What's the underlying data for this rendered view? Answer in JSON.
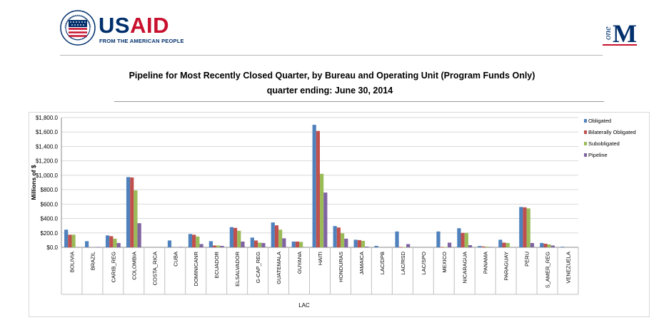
{
  "header": {
    "usaid_logo_text": "USAID",
    "usaid_logo_us": "US",
    "usaid_logo_aid": "AID",
    "usaid_tagline": "FROM THE AMERICAN PEOPLE",
    "onem_logo_text": "oneM",
    "onem_logo_one": "one",
    "onem_logo_m": "M"
  },
  "colors": {
    "obligated": "#4f81bd",
    "bilaterally_obligated": "#c0504d",
    "subobligated": "#9bbb59",
    "pipeline": "#8064a2",
    "usaid_blue": "#002f6c",
    "usaid_red": "#c8102e"
  },
  "chart_data": {
    "type": "bar",
    "title": "Pipeline for Most Recently Closed Quarter, by Bureau and Operating Unit (Program Funds Only)",
    "subtitle": "quarter ending:  June 30, 2014",
    "xlabel": "LAC",
    "ylabel": "Millions of $",
    "ylim": [
      0,
      1800
    ],
    "yticks": [
      "$0.0",
      "$200.0",
      "$400.0",
      "$600.0",
      "$800.0",
      "$1,000.0",
      "$1,200.0",
      "$1,400.0",
      "$1,600.0",
      "$1,800.0"
    ],
    "grid": true,
    "legend_position": "top-right",
    "categories": [
      "BOLIVIA",
      "BRAZIL",
      "CARIB_REG",
      "COLOMBIA",
      "COSTA_RICA",
      "CUBA",
      "DOMINICANR",
      "ECUADOR",
      "ELSALVADOR",
      "G-CAP_REG",
      "GUATEMALA",
      "GUYANA",
      "HAITI",
      "HONDURAS",
      "JAMAICA",
      "LAC/DPB",
      "LAC/RSD",
      "LAC/SPO",
      "MEXICO",
      "NICARAGUA",
      "PANAMA",
      "PARAGUAY",
      "PERU",
      "S_AMER_REG",
      "VENEZUELA"
    ],
    "series": [
      {
        "name": "Obligated",
        "color": "#4f81bd",
        "values": [
          245,
          85,
          165,
          975,
          0,
          95,
          185,
          85,
          280,
          135,
          345,
          80,
          1700,
          295,
          105,
          20,
          220,
          0,
          220,
          265,
          18,
          105,
          560,
          60,
          8
        ]
      },
      {
        "name": "Bilaterally Obligated",
        "color": "#c0504d",
        "values": [
          175,
          0,
          155,
          970,
          0,
          0,
          175,
          25,
          270,
          95,
          305,
          80,
          1615,
          275,
          100,
          0,
          5,
          0,
          5,
          200,
          12,
          65,
          555,
          50,
          0
        ]
      },
      {
        "name": "Subobligated",
        "color": "#9bbb59",
        "values": [
          175,
          0,
          120,
          790,
          0,
          0,
          150,
          25,
          230,
          65,
          245,
          75,
          1020,
          195,
          90,
          0,
          5,
          0,
          5,
          200,
          10,
          60,
          540,
          40,
          0
        ]
      },
      {
        "name": "Pipeline",
        "color": "#8064a2",
        "values": [
          0,
          5,
          60,
          335,
          0,
          5,
          45,
          20,
          80,
          60,
          125,
          0,
          760,
          120,
          10,
          0,
          45,
          0,
          65,
          30,
          5,
          0,
          60,
          25,
          0
        ]
      }
    ]
  }
}
